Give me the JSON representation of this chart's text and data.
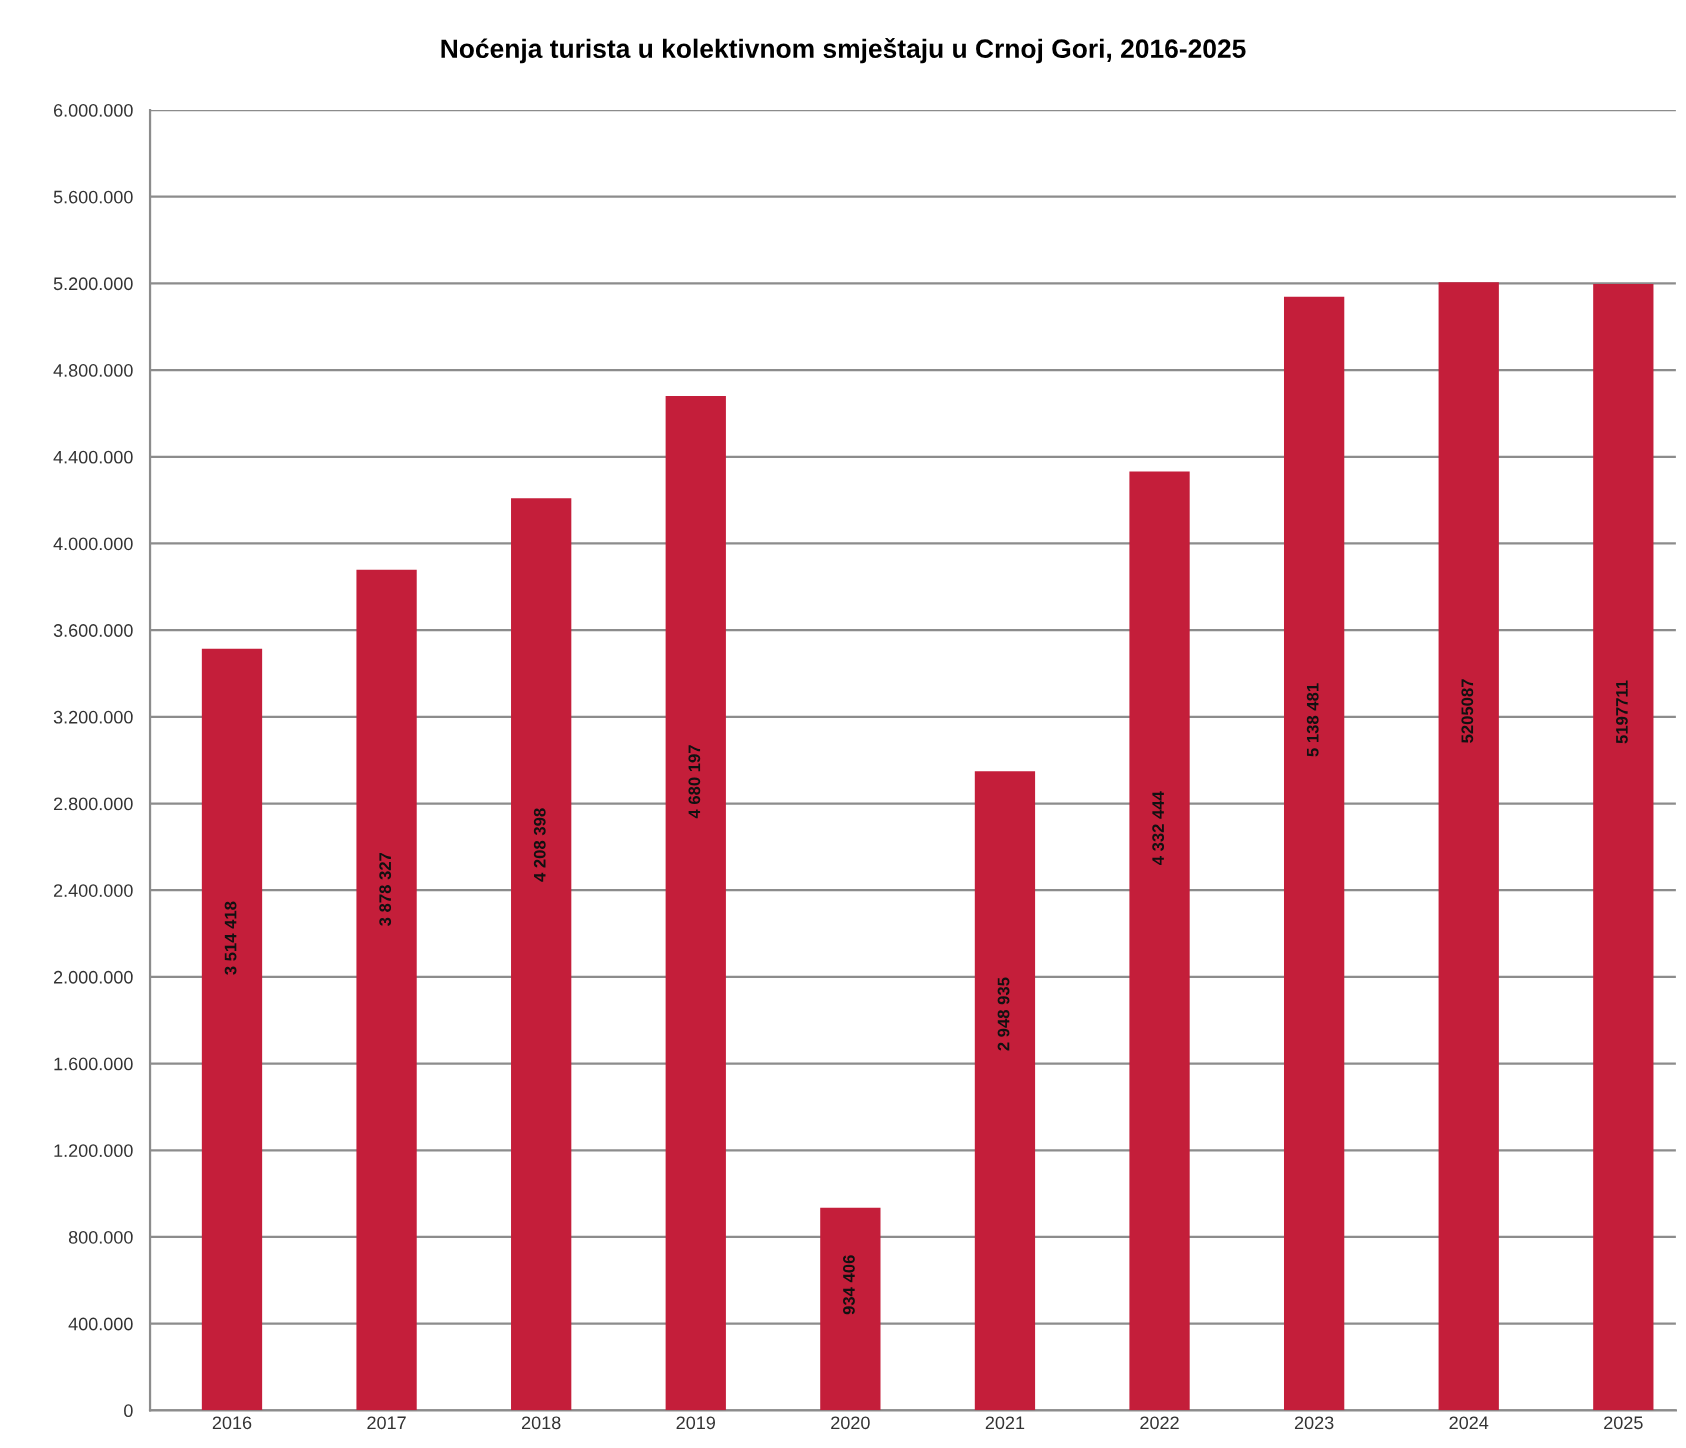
{
  "chart_data": {
    "type": "bar",
    "title": "Noćenja turista u kolektivnom smještaju u Crnoj Gori, 2016-2025",
    "categories": [
      "2016",
      "2017",
      "2018",
      "2019",
      "2020",
      "2021",
      "2022",
      "2023",
      "2024",
      "2025"
    ],
    "values": [
      3514418,
      3878327,
      4208398,
      4680197,
      934406,
      2948935,
      4332444,
      5138481,
      5205087,
      5197711
    ],
    "value_labels": [
      "3 514 418",
      "3 878 327",
      "4 208 398",
      "4 680 197",
      "934 406",
      "2 948 935",
      "4 332 444",
      "5 138 481",
      "5205087",
      "5197711"
    ],
    "color": "#c41e3a",
    "ylim": [
      0,
      6000000
    ],
    "yticks": [
      0,
      {
        "value": 400000,
        "label": "400.000"
      },
      {
        "value": 800000,
        "label": "800.000"
      },
      {
        "value": 1200000,
        "label": "1.200.000"
      },
      {
        "value": 1600000,
        "label": "1.600.000"
      },
      {
        "value": 2000000,
        "label": "2.000.000"
      },
      {
        "value": 2400000,
        "label": "2.400.000"
      },
      {
        "value": 2800000,
        "label": "2.800.000"
      },
      {
        "value": 3200000,
        "label": "3.200.000"
      },
      {
        "value": 3600000,
        "label": "3.600.000"
      },
      {
        "value": 4000000,
        "label": "4.000.000"
      },
      {
        "value": 4400000,
        "label": "4.400.000"
      },
      {
        "value": 4800000,
        "label": "4.800.000"
      },
      {
        "value": 5200000,
        "label": "5.200.000"
      },
      {
        "value": 5600000,
        "label": "5.600.000"
      },
      {
        "value": 6000000,
        "label": "6.000.000"
      }
    ],
    "grid": "y",
    "legend": false
  }
}
